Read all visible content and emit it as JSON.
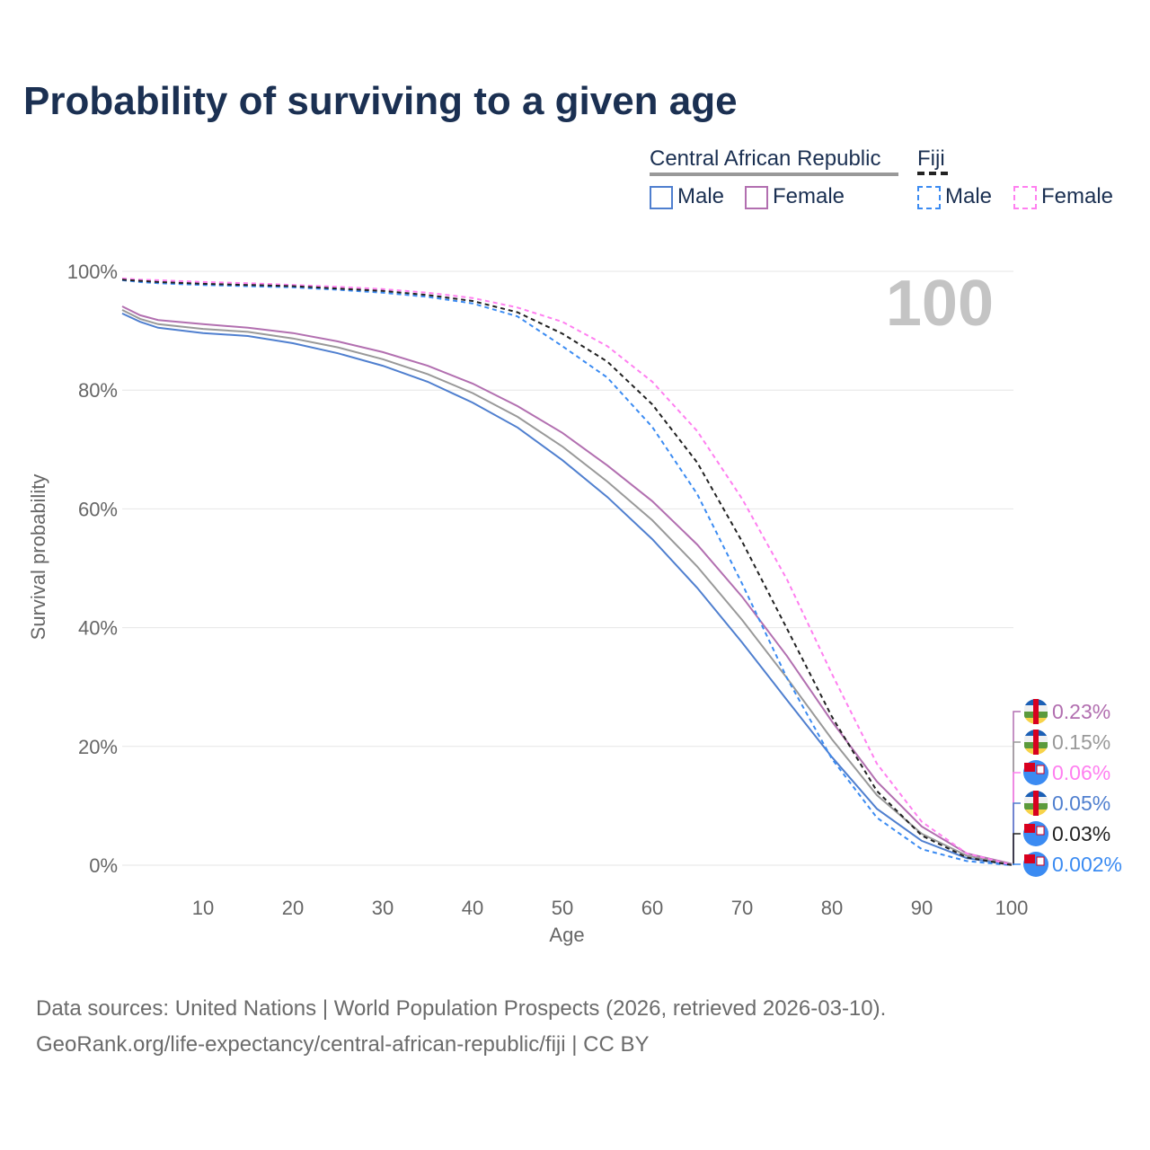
{
  "title": "Probability of surviving to a given age",
  "legend": {
    "groups": [
      {
        "label": "Central African Republic",
        "items": [
          "Male",
          "Female"
        ]
      },
      {
        "label": "Fiji",
        "items": [
          "Male",
          "Female"
        ]
      }
    ]
  },
  "sources": [
    "Data sources: United Nations | World Population Prospects (2026, retrieved 2026-03-10).",
    "GeoRank.org/life-expectancy/central-african-republic/fiji | CC BY"
  ],
  "chart_data": {
    "type": "line",
    "xlabel": "Age",
    "ylabel": "Survival probability",
    "xlim": [
      0,
      100
    ],
    "ylim": [
      0,
      100
    ],
    "x_ticks": [
      "10",
      "20",
      "30",
      "40",
      "50",
      "60",
      "70",
      "80",
      "90",
      "100"
    ],
    "y_ticks": [
      "0%",
      "20%",
      "40%",
      "60%",
      "80%",
      "100%"
    ],
    "annotation": "100",
    "x": [
      1,
      3,
      5,
      10,
      15,
      20,
      25,
      30,
      35,
      40,
      45,
      50,
      55,
      60,
      65,
      70,
      75,
      80,
      85,
      90,
      95,
      100
    ],
    "series": [
      {
        "name": "Central African Republic Male",
        "color": "#4f7fcf",
        "dash": false,
        "end_label": "0.05%",
        "values": [
          92.9,
          91.5,
          90.5,
          89.6,
          89.1,
          87.9,
          86.2,
          84.1,
          81.4,
          77.9,
          73.7,
          68.2,
          62.0,
          54.9,
          46.7,
          37.5,
          27.8,
          18.2,
          9.5,
          4.1,
          1.2,
          0.05
        ]
      },
      {
        "name": "Central African Republic Female",
        "color": "#b26fb0",
        "dash": false,
        "end_label": "0.23%",
        "values": [
          94.1,
          92.6,
          91.8,
          91.1,
          90.5,
          89.6,
          88.2,
          86.4,
          84.1,
          81.1,
          77.3,
          72.8,
          67.3,
          61.3,
          54.0,
          45.2,
          35.2,
          24.2,
          14.1,
          6.5,
          2.0,
          0.23
        ]
      },
      {
        "name": "Central African Republic",
        "color": "#999999",
        "dash": false,
        "end_label": "0.15%",
        "values": [
          93.5,
          92.0,
          91.1,
          90.3,
          89.8,
          88.7,
          87.2,
          85.2,
          82.7,
          79.5,
          75.5,
          70.5,
          64.6,
          58.1,
          50.3,
          41.3,
          31.5,
          21.2,
          11.8,
          5.3,
          1.6,
          0.15
        ]
      },
      {
        "name": "Fiji Male",
        "color": "#3b8bf2",
        "dash": true,
        "end_label": "0.002%",
        "values": [
          98.5,
          98.2,
          98.0,
          97.7,
          97.5,
          97.3,
          96.9,
          96.4,
          95.7,
          94.6,
          92.4,
          87.4,
          82.1,
          73.8,
          62.5,
          47.4,
          31.5,
          17.9,
          8.0,
          2.7,
          0.7,
          0.002
        ]
      },
      {
        "name": "Fiji Female",
        "color": "#ff7ff0",
        "dash": true,
        "end_label": "0.06%",
        "values": [
          98.8,
          98.6,
          98.5,
          98.2,
          98.0,
          97.7,
          97.4,
          97.0,
          96.4,
          95.5,
          93.9,
          91.5,
          87.4,
          81.4,
          73.1,
          61.7,
          48.1,
          32.2,
          17.1,
          7.3,
          2.0,
          0.06
        ]
      },
      {
        "name": "Fiji",
        "color": "#222222",
        "dash": true,
        "end_label": "0.03%",
        "values": [
          98.6,
          98.4,
          98.2,
          97.9,
          97.7,
          97.5,
          97.1,
          96.7,
          96.0,
          95.0,
          93.1,
          89.5,
          84.8,
          77.6,
          67.8,
          54.5,
          39.8,
          25.0,
          12.5,
          5.0,
          1.3,
          0.03
        ]
      }
    ]
  }
}
